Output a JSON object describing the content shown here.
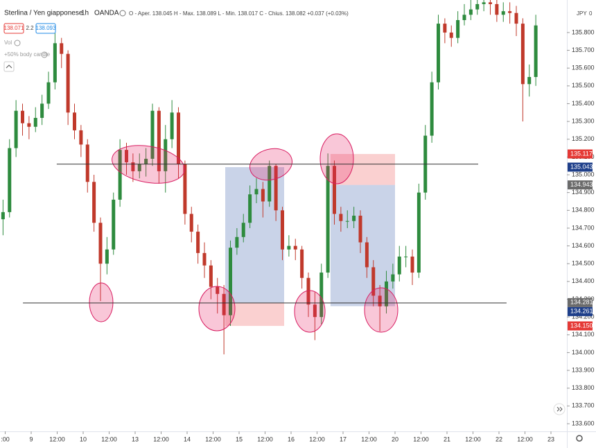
{
  "toolbar": {
    "symbol": "Sterlina / Yen giapponese",
    "interval": "1h",
    "broker": "OANDA",
    "ohlc": "O - Aper. 138.045 H - Max. 138.089 L - Min. 138.017 C - Chius. 138.082 +0.037 (+0.03%)",
    "bid": "138.071",
    "spread": "2.2",
    "ask": "138.093",
    "volume": "Vol",
    "indicator": "+50% body candle",
    "currency": "JPY",
    "currency_count": "0"
  },
  "chart_data": {
    "type": "candlestick",
    "x": [
      -13,
      -10,
      -7,
      -4,
      -1,
      2,
      5,
      8,
      11,
      14,
      17,
      20,
      23,
      26,
      29,
      32,
      35,
      38,
      41,
      44,
      47,
      50,
      53,
      56,
      59,
      62,
      65,
      68,
      71,
      74,
      77,
      80,
      83,
      86,
      89,
      92,
      95,
      98,
      101,
      104,
      107,
      110,
      113,
      116,
      119,
      122,
      125,
      128,
      131,
      134,
      137,
      140,
      143,
      146,
      149,
      152,
      155,
      158,
      161,
      164,
      167,
      170,
      173,
      176,
      179,
      182,
      185,
      188,
      191,
      194,
      197,
      200,
      203,
      206,
      209,
      212,
      215,
      218,
      221,
      224,
      227,
      230,
      233
    ],
    "open": [
      134.75,
      134.79,
      135.15,
      135.36,
      135.29,
      135.27,
      135.32,
      135.4,
      135.52,
      135.74,
      135.68,
      135.35,
      135.25,
      135.17,
      134.96,
      134.73,
      134.5,
      134.58,
      134.86,
      135.14,
      135.07,
      135.02,
      135.06,
      135.09,
      135.36,
      135.02,
      135.2,
      135.35,
      135.06,
      134.78,
      134.68,
      134.56,
      134.49,
      134.37,
      134.33,
      134.21,
      134.59,
      134.65,
      134.73,
      134.89,
      134.92,
      134.85,
      135.05,
      134.8,
      134.58,
      134.6,
      134.58,
      134.42,
      134.27,
      134.2,
      134.45,
      135.05,
      134.78,
      134.74,
      134.74,
      134.77,
      134.62,
      134.48,
      134.32,
      134.26,
      134.4,
      134.44,
      134.54,
      134.54,
      134.45,
      134.9,
      135.22,
      135.52,
      135.85,
      135.8,
      135.77,
      135.87,
      135.9,
      135.93,
      135.96,
      135.97,
      135.96,
      135.9,
      135.92,
      135.91,
      135.85,
      135.51,
      135.55
    ],
    "high": [
      134.86,
      135.2,
      135.42,
      135.4,
      135.33,
      135.38,
      135.45,
      135.58,
      135.8,
      135.77,
      135.7,
      135.4,
      135.28,
      135.2,
      135.0,
      134.76,
      134.65,
      134.9,
      135.2,
      135.18,
      135.12,
      135.12,
      135.15,
      135.4,
      135.38,
      135.28,
      135.42,
      135.38,
      135.08,
      134.82,
      134.72,
      134.62,
      134.52,
      134.42,
      134.38,
      134.63,
      134.7,
      134.78,
      134.94,
      134.98,
      134.96,
      135.08,
      135.06,
      134.82,
      134.66,
      134.64,
      134.6,
      134.45,
      134.34,
      134.5,
      135.12,
      135.08,
      134.82,
      134.8,
      134.82,
      134.8,
      134.65,
      134.52,
      134.38,
      134.46,
      134.5,
      134.6,
      134.6,
      134.58,
      134.95,
      135.28,
      135.58,
      135.9,
      135.88,
      135.84,
      135.92,
      135.96,
      135.99,
      136.02,
      136.03,
      136.02,
      136.0,
      135.97,
      135.97,
      135.95,
      135.88,
      135.62,
      135.9
    ],
    "low": [
      134.66,
      134.76,
      135.1,
      135.22,
      135.2,
      135.24,
      135.28,
      135.37,
      135.48,
      135.6,
      135.28,
      135.2,
      135.1,
      134.9,
      134.68,
      134.29,
      134.44,
      134.55,
      134.82,
      135.0,
      134.96,
      134.98,
      134.99,
      135.05,
      134.95,
      134.9,
      135.15,
      134.98,
      134.72,
      134.62,
      134.5,
      134.42,
      134.3,
      134.22,
      133.99,
      134.15,
      134.55,
      134.62,
      134.7,
      134.84,
      134.76,
      134.82,
      134.74,
      134.52,
      134.54,
      134.52,
      134.36,
      134.2,
      134.07,
      134.16,
      134.42,
      134.72,
      134.68,
      134.7,
      134.7,
      134.56,
      134.42,
      134.26,
      134.12,
      134.22,
      134.36,
      134.4,
      134.48,
      134.38,
      134.42,
      134.86,
      135.18,
      135.48,
      135.74,
      135.72,
      135.74,
      135.84,
      135.87,
      135.9,
      135.92,
      135.9,
      135.86,
      135.86,
      135.85,
      135.78,
      135.3,
      135.44,
      135.5
    ],
    "close": [
      134.79,
      135.15,
      135.36,
      135.29,
      135.27,
      135.32,
      135.4,
      135.52,
      135.74,
      135.68,
      135.35,
      135.25,
      135.17,
      134.96,
      134.73,
      134.5,
      134.58,
      134.86,
      135.14,
      135.07,
      135.02,
      135.06,
      135.09,
      135.36,
      135.02,
      135.2,
      135.35,
      135.06,
      134.78,
      134.68,
      134.56,
      134.49,
      134.37,
      134.33,
      134.21,
      134.59,
      134.65,
      134.73,
      134.89,
      134.92,
      134.85,
      135.05,
      134.8,
      134.58,
      134.6,
      134.58,
      134.42,
      134.27,
      134.2,
      134.45,
      135.05,
      134.78,
      134.74,
      134.74,
      134.77,
      134.62,
      134.48,
      134.32,
      134.26,
      134.4,
      134.44,
      134.54,
      134.54,
      134.45,
      134.9,
      135.22,
      135.52,
      135.85,
      135.8,
      135.77,
      135.87,
      135.9,
      135.93,
      135.96,
      135.97,
      135.96,
      135.9,
      135.92,
      135.91,
      135.85,
      135.51,
      135.55,
      135.84
    ],
    "up_color": "#2e8b3e",
    "down_color": "#c0392b",
    "xlim": [
      -14.4,
      247.36
    ],
    "xticks": [
      {
        "value": -12,
        "label": ":00"
      },
      {
        "value": 0,
        "label": "9"
      },
      {
        "value": 12,
        "label": "12:00"
      },
      {
        "value": 24,
        "label": "10"
      },
      {
        "value": 36,
        "label": "12:00"
      },
      {
        "value": 48,
        "label": "13"
      },
      {
        "value": 60,
        "label": "12:00"
      },
      {
        "value": 72,
        "label": "14"
      },
      {
        "value": 84,
        "label": "12:00"
      },
      {
        "value": 96,
        "label": "15"
      },
      {
        "value": 108,
        "label": "12:00"
      },
      {
        "value": 120,
        "label": "16"
      },
      {
        "value": 132,
        "label": "12:00"
      },
      {
        "value": 144,
        "label": "17"
      },
      {
        "value": 156,
        "label": "12:00"
      },
      {
        "value": 168,
        "label": "20"
      },
      {
        "value": 180,
        "label": "12:00"
      },
      {
        "value": 192,
        "label": "21"
      },
      {
        "value": 204,
        "label": "12:00"
      },
      {
        "value": 216,
        "label": "22"
      },
      {
        "value": 228,
        "label": "12:00"
      },
      {
        "value": 240,
        "label": "23"
      }
    ],
    "ylim": [
      133.557,
      135.983
    ],
    "yticks": [
      {
        "value": 135.8,
        "label": "135.800"
      },
      {
        "value": 135.7,
        "label": "135.700"
      },
      {
        "value": 135.6,
        "label": "135.600"
      },
      {
        "value": 135.5,
        "label": "135.500"
      },
      {
        "value": 135.4,
        "label": "135.400"
      },
      {
        "value": 135.3,
        "label": "135.300"
      },
      {
        "value": 135.2,
        "label": "135.200"
      },
      {
        "value": 135.1,
        "label": "135.100"
      },
      {
        "value": 135.0,
        "label": "135.000"
      },
      {
        "value": 134.9,
        "label": "134.900"
      },
      {
        "value": 134.8,
        "label": "134.800"
      },
      {
        "value": 134.7,
        "label": "134.700"
      },
      {
        "value": 134.6,
        "label": "134.600"
      },
      {
        "value": 134.5,
        "label": "134.500"
      },
      {
        "value": 134.4,
        "label": "134.400"
      },
      {
        "value": 134.3,
        "label": "134.300"
      },
      {
        "value": 134.2,
        "label": "134.200"
      },
      {
        "value": 134.1,
        "label": "134.100"
      },
      {
        "value": 134.0,
        "label": "134.000"
      },
      {
        "value": 133.9,
        "label": "133.900"
      },
      {
        "value": 133.8,
        "label": "133.800"
      },
      {
        "value": 133.7,
        "label": "133.700"
      },
      {
        "value": 133.6,
        "label": "133.600"
      }
    ],
    "hlines": [
      {
        "value": 135.06,
        "x": [
          11.8,
          206.4
        ]
      },
      {
        "value": 134.279,
        "x": [
          -3.8,
          219.5
        ]
      }
    ],
    "positions": [
      {
        "x": [
          89.6,
          116.8
        ],
        "entry": 134.281,
        "target": 135.043,
        "stop": 134.15
      },
      {
        "x": [
          138.2,
          168
        ],
        "entry": 134.943,
        "target": 134.261,
        "stop": 135.117
      }
    ],
    "price_tags": [
      {
        "value": 135.117,
        "label": "135.117",
        "color": "#e53935"
      },
      {
        "value": 135.043,
        "label": "135.043",
        "color": "#1e3f8a"
      },
      {
        "value": 134.943,
        "label": "134.943",
        "color": "#6b6b6b"
      },
      {
        "value": 134.281,
        "label": "134.281",
        "color": "#6b6b6b"
      },
      {
        "value": 134.261,
        "label": "134.261",
        "color": "#1e3f8a"
      },
      {
        "value": 134.15,
        "label": "134.150",
        "color": "#e53935"
      }
    ]
  }
}
